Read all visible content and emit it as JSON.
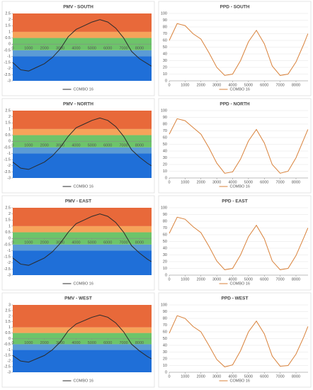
{
  "chart_data": [
    {
      "type": "line",
      "title": "PMV - SOUTH",
      "x": [
        0,
        500,
        1000,
        1500,
        2000,
        2500,
        3000,
        3500,
        4000,
        4500,
        5000,
        5500,
        6000,
        6500,
        7000,
        7500,
        8000,
        8500,
        8750
      ],
      "xlim": [
        0,
        8760
      ],
      "xticks": [
        0,
        1000,
        2000,
        3000,
        4000,
        5000,
        6000,
        7000,
        8000
      ],
      "ylim": [
        -3,
        2.5
      ],
      "yticks": [
        -3,
        -2.5,
        -2,
        -1.5,
        -1,
        -0.5,
        0,
        0.5,
        1,
        1.5,
        2,
        2.5
      ],
      "bands": [
        {
          "from": -3,
          "to": -1,
          "color": "#1f6fd8"
        },
        {
          "from": -1,
          "to": -0.5,
          "color": "#5b9bd5"
        },
        {
          "from": -0.5,
          "to": 0.5,
          "color": "#6dc46a"
        },
        {
          "from": 0.5,
          "to": 1,
          "color": "#f6a35a"
        },
        {
          "from": 1,
          "to": 2.5,
          "color": "#e8693a"
        }
      ],
      "grid": false,
      "legend": "bottom",
      "series": [
        {
          "name": "COMBO 16",
          "color": "#2b2b2b",
          "values": [
            -1.5,
            -2.1,
            -2.2,
            -1.9,
            -1.6,
            -1.1,
            -0.4,
            0.6,
            1.2,
            1.5,
            1.8,
            2.0,
            1.8,
            1.3,
            0.5,
            -0.6,
            -1.2,
            -1.6,
            -1.8
          ]
        }
      ]
    },
    {
      "type": "line",
      "title": "PPD - SOUTH",
      "x": [
        0,
        500,
        1000,
        1500,
        2000,
        2500,
        3000,
        3500,
        4000,
        4500,
        5000,
        5500,
        6000,
        6500,
        7000,
        7500,
        8000,
        8500,
        8750
      ],
      "xlim": [
        0,
        8760
      ],
      "xticks": [
        0,
        1000,
        2000,
        3000,
        4000,
        5000,
        6000,
        7000,
        8000
      ],
      "ylim": [
        0,
        100
      ],
      "yticks": [
        0,
        10,
        20,
        30,
        40,
        50,
        60,
        70,
        80,
        90,
        100
      ],
      "grid": true,
      "legend": "bottom",
      "series": [
        {
          "name": "COMBO 16",
          "color": "#d9823b",
          "values": [
            60,
            85,
            82,
            70,
            62,
            42,
            20,
            8,
            10,
            30,
            58,
            75,
            55,
            22,
            8,
            10,
            28,
            55,
            70
          ]
        }
      ]
    },
    {
      "type": "line",
      "title": "PMV - NORTH",
      "x": [
        0,
        500,
        1000,
        1500,
        2000,
        2500,
        3000,
        3500,
        4000,
        4500,
        5000,
        5500,
        6000,
        6500,
        7000,
        7500,
        8000,
        8500,
        8750
      ],
      "xlim": [
        0,
        8760
      ],
      "xticks": [
        0,
        1000,
        2000,
        3000,
        4000,
        5000,
        6000,
        7000,
        8000
      ],
      "ylim": [
        -3,
        2.5
      ],
      "yticks": [
        -3,
        -2.5,
        -2,
        -1.5,
        -1,
        -0.5,
        0,
        0.5,
        1,
        1.5,
        2,
        2.5
      ],
      "bands": [
        {
          "from": -3,
          "to": -1,
          "color": "#1f6fd8"
        },
        {
          "from": -1,
          "to": -0.5,
          "color": "#5b9bd5"
        },
        {
          "from": -0.5,
          "to": 0.5,
          "color": "#6dc46a"
        },
        {
          "from": 0.5,
          "to": 1,
          "color": "#f6a35a"
        },
        {
          "from": 1,
          "to": 2.5,
          "color": "#e8693a"
        }
      ],
      "grid": false,
      "legend": "bottom",
      "series": [
        {
          "name": "COMBO 16",
          "color": "#2b2b2b",
          "values": [
            -1.7,
            -2.2,
            -2.3,
            -2.0,
            -1.7,
            -1.2,
            -0.5,
            0.4,
            1.1,
            1.4,
            1.7,
            1.9,
            1.7,
            1.2,
            0.4,
            -0.7,
            -1.3,
            -1.8,
            -2.0
          ]
        }
      ]
    },
    {
      "type": "line",
      "title": "PPD - NORTH",
      "x": [
        0,
        500,
        1000,
        1500,
        2000,
        2500,
        3000,
        3500,
        4000,
        4500,
        5000,
        5500,
        6000,
        6500,
        7000,
        7500,
        8000,
        8500,
        8750
      ],
      "xlim": [
        0,
        8760
      ],
      "xticks": [
        0,
        1000,
        2000,
        3000,
        4000,
        5000,
        6000,
        7000,
        8000
      ],
      "ylim": [
        0,
        100
      ],
      "yticks": [
        0,
        10,
        20,
        30,
        40,
        50,
        60,
        70,
        80,
        90,
        100
      ],
      "grid": true,
      "legend": "bottom",
      "series": [
        {
          "name": "COMBO 16",
          "color": "#d9823b",
          "values": [
            65,
            88,
            85,
            75,
            65,
            45,
            22,
            7,
            9,
            28,
            55,
            72,
            52,
            20,
            7,
            10,
            30,
            58,
            72
          ]
        }
      ]
    },
    {
      "type": "line",
      "title": "PMV - EAST",
      "x": [
        0,
        500,
        1000,
        1500,
        2000,
        2500,
        3000,
        3500,
        4000,
        4500,
        5000,
        5500,
        6000,
        6500,
        7000,
        7500,
        8000,
        8500,
        8750
      ],
      "xlim": [
        0,
        8760
      ],
      "xticks": [
        0,
        1000,
        2000,
        3000,
        4000,
        5000,
        6000,
        7000,
        8000
      ],
      "ylim": [
        -3,
        2.5
      ],
      "yticks": [
        -3,
        -2.5,
        -2,
        -1.5,
        -1,
        -0.5,
        0,
        0.5,
        1,
        1.5,
        2,
        2.5
      ],
      "bands": [
        {
          "from": -3,
          "to": -1,
          "color": "#1f6fd8"
        },
        {
          "from": -1,
          "to": -0.5,
          "color": "#5b9bd5"
        },
        {
          "from": -0.5,
          "to": 0.5,
          "color": "#6dc46a"
        },
        {
          "from": 0.5,
          "to": 1,
          "color": "#f6a35a"
        },
        {
          "from": 1,
          "to": 2.5,
          "color": "#e8693a"
        }
      ],
      "grid": false,
      "legend": "bottom",
      "series": [
        {
          "name": "COMBO 16",
          "color": "#2b2b2b",
          "values": [
            -1.6,
            -2.1,
            -2.2,
            -1.9,
            -1.6,
            -1.1,
            -0.4,
            0.5,
            1.2,
            1.5,
            1.8,
            2.0,
            1.8,
            1.3,
            0.5,
            -0.6,
            -1.2,
            -1.7,
            -1.9
          ]
        }
      ]
    },
    {
      "type": "line",
      "title": "PPD - EAST",
      "x": [
        0,
        500,
        1000,
        1500,
        2000,
        2500,
        3000,
        3500,
        4000,
        4500,
        5000,
        5500,
        6000,
        6500,
        7000,
        7500,
        8000,
        8500,
        8750
      ],
      "xlim": [
        0,
        8760
      ],
      "xticks": [
        0,
        1000,
        2000,
        3000,
        4000,
        5000,
        6000,
        7000,
        8000
      ],
      "ylim": [
        0,
        100
      ],
      "yticks": [
        0,
        10,
        20,
        30,
        40,
        50,
        60,
        70,
        80,
        90,
        100
      ],
      "grid": true,
      "legend": "bottom",
      "series": [
        {
          "name": "COMBO 16",
          "color": "#d9823b",
          "values": [
            62,
            86,
            83,
            72,
            63,
            43,
            21,
            8,
            10,
            30,
            57,
            74,
            54,
            21,
            8,
            10,
            29,
            56,
            70
          ]
        }
      ]
    },
    {
      "type": "line",
      "title": "PMV - WEST",
      "x": [
        0,
        500,
        1000,
        1500,
        2000,
        2500,
        3000,
        3500,
        4000,
        4500,
        5000,
        5500,
        6000,
        6500,
        7000,
        7500,
        8000,
        8500,
        8750
      ],
      "xlim": [
        0,
        8760
      ],
      "xticks": [
        0,
        1000,
        2000,
        3000,
        4000,
        5000,
        6000,
        7000,
        8000
      ],
      "ylim": [
        -3,
        3
      ],
      "yticks": [
        -3,
        -2.5,
        -2,
        -1.5,
        -1,
        -0.5,
        0,
        0.5,
        1,
        1.5,
        2,
        2.5,
        3
      ],
      "bands": [
        {
          "from": -3,
          "to": -1,
          "color": "#1f6fd8"
        },
        {
          "from": -1,
          "to": -0.5,
          "color": "#5b9bd5"
        },
        {
          "from": -0.5,
          "to": 0.5,
          "color": "#6dc46a"
        },
        {
          "from": 0.5,
          "to": 1,
          "color": "#f6a35a"
        },
        {
          "from": 1,
          "to": 3,
          "color": "#e8693a"
        }
      ],
      "grid": false,
      "legend": "bottom",
      "series": [
        {
          "name": "COMBO 16",
          "color": "#2b2b2b",
          "values": [
            -1.5,
            -2.0,
            -2.1,
            -1.8,
            -1.5,
            -1.0,
            -0.3,
            0.7,
            1.3,
            1.6,
            1.9,
            2.1,
            1.9,
            1.4,
            0.6,
            -0.5,
            -1.1,
            -1.6,
            -1.8
          ]
        }
      ]
    },
    {
      "type": "line",
      "title": "PPD - WEST",
      "x": [
        0,
        500,
        1000,
        1500,
        2000,
        2500,
        3000,
        3500,
        4000,
        4500,
        5000,
        5500,
        6000,
        6500,
        7000,
        7500,
        8000,
        8500,
        8750
      ],
      "xlim": [
        0,
        8760
      ],
      "xticks": [
        0,
        1000,
        2000,
        3000,
        4000,
        5000,
        6000,
        7000,
        8000
      ],
      "ylim": [
        0,
        100
      ],
      "yticks": [
        0,
        10,
        20,
        30,
        40,
        50,
        60,
        70,
        80,
        90,
        100
      ],
      "grid": true,
      "legend": "bottom",
      "series": [
        {
          "name": "COMBO 16",
          "color": "#d9823b",
          "values": [
            58,
            84,
            80,
            68,
            60,
            40,
            19,
            8,
            11,
            32,
            60,
            76,
            57,
            24,
            9,
            10,
            27,
            53,
            68
          ]
        }
      ]
    }
  ]
}
